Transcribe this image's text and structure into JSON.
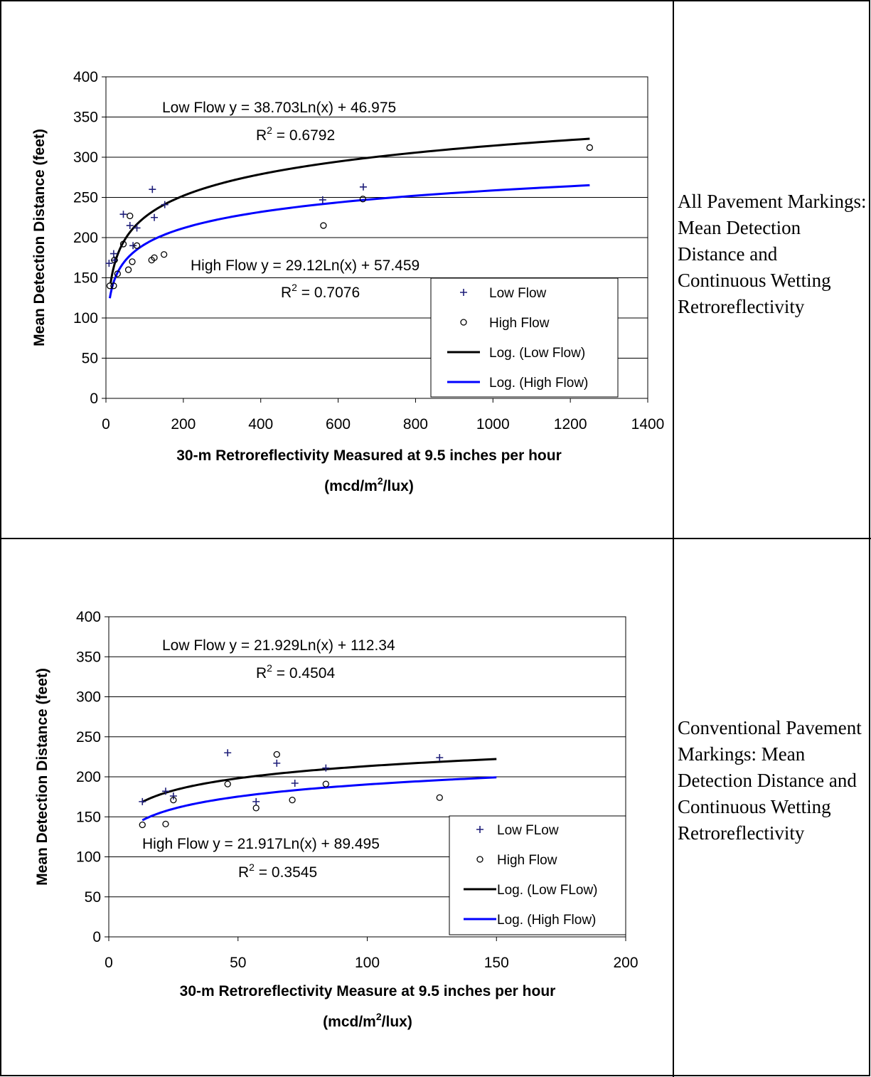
{
  "panels": [
    {
      "caption": "All Pavement Markings: Mean Detection Distance and Continuous Wetting Retroreflectivity",
      "chart_data": {
        "type": "scatter",
        "ylabel": "Mean Detection Distance (feet)",
        "xlabel_line1": "30-m Retroreflectivity Measured at 9.5 inches per hour",
        "xlabel_line2_pre": "(mcd/m",
        "xlabel_line2_sup": "2",
        "xlabel_line2_post": "/lux)",
        "xlim": [
          0,
          1400
        ],
        "ylim": [
          0,
          400
        ],
        "xticks": [
          0,
          200,
          400,
          600,
          800,
          1000,
          1200,
          1400
        ],
        "yticks": [
          0,
          50,
          100,
          150,
          200,
          250,
          300,
          350,
          400
        ],
        "grid": "horizontal",
        "legend_position": "bottom-right",
        "legend": [
          "Low Flow",
          "High Flow",
          "Log. (Low Flow)",
          "Log. (High Flow)"
        ],
        "series": [
          {
            "name": "Low Flow",
            "marker": "plus",
            "color": "#1f1f7a",
            "points": [
              [
                8,
                168
              ],
              [
                20,
                180
              ],
              [
                22,
                172
              ],
              [
                45,
                229
              ],
              [
                62,
                215
              ],
              [
                70,
                190
              ],
              [
                80,
                212
              ],
              [
                120,
                260
              ],
              [
                125,
                225
              ],
              [
                152,
                241
              ],
              [
                560,
                247
              ],
              [
                665,
                263
              ]
            ]
          },
          {
            "name": "High Flow",
            "marker": "circle",
            "color": "#000000",
            "points": [
              [
                10,
                140
              ],
              [
                20,
                140
              ],
              [
                22,
                172
              ],
              [
                30,
                155
              ],
              [
                45,
                192
              ],
              [
                58,
                160
              ],
              [
                62,
                227
              ],
              [
                68,
                170
              ],
              [
                80,
                190
              ],
              [
                118,
                172
              ],
              [
                125,
                175
              ],
              [
                150,
                179
              ],
              [
                562,
                215
              ],
              [
                664,
                248
              ],
              [
                1250,
                312
              ]
            ]
          }
        ],
        "trendlines": [
          {
            "name": "Log. (Low Flow)",
            "a": 38.703,
            "b": 46.975,
            "xmin": 12,
            "xmax": 1250,
            "color": "#000000"
          },
          {
            "name": "Log. (High Flow)",
            "a": 29.12,
            "b": 57.459,
            "xmin": 10,
            "xmax": 1250,
            "color": "#0000ff"
          }
        ],
        "annotations": [
          {
            "eq": "Low Flow  y = 38.703Ln(x) + 46.975",
            "r2_pre": "R",
            "r2_sup": "2",
            "r2_post": " = 0.6792"
          },
          {
            "eq": "High Flow  y = 29.12Ln(x) + 57.459",
            "r2_pre": "R",
            "r2_sup": "2",
            "r2_post": " = 0.7076"
          }
        ]
      }
    },
    {
      "caption": "Conventional Pavement Markings: Mean Detection Distance and Continuous Wetting Retroreflectivity",
      "chart_data": {
        "type": "scatter",
        "ylabel": "Mean Detection Distance (feet)",
        "xlabel_line1": "30-m Retroreflectivity Measure at 9.5 inches per hour",
        "xlabel_line2_pre": "(mcd/m",
        "xlabel_line2_sup": "2",
        "xlabel_line2_post": "/lux)",
        "xlim": [
          0,
          200
        ],
        "ylim": [
          0,
          400
        ],
        "xticks": [
          0,
          50,
          100,
          150,
          200
        ],
        "yticks": [
          0,
          50,
          100,
          150,
          200,
          250,
          300,
          350,
          400
        ],
        "grid": "horizontal",
        "legend_position": "bottom-right",
        "legend": [
          "Low FLow",
          "High Flow",
          "Log. (Low FLow)",
          "Log. (High Flow)"
        ],
        "series": [
          {
            "name": "Low FLow",
            "marker": "plus",
            "color": "#1f1f7a",
            "points": [
              [
                13,
                169
              ],
              [
                22,
                182
              ],
              [
                25,
                176
              ],
              [
                46,
                230
              ],
              [
                57,
                169
              ],
              [
                65,
                217
              ],
              [
                72,
                192
              ],
              [
                84,
                211
              ],
              [
                128,
                224
              ]
            ]
          },
          {
            "name": "High Flow",
            "marker": "circle",
            "color": "#000000",
            "points": [
              [
                13,
                140
              ],
              [
                22,
                141
              ],
              [
                25,
                171
              ],
              [
                46,
                191
              ],
              [
                57,
                161
              ],
              [
                65,
                228
              ],
              [
                71,
                171
              ],
              [
                84,
                191
              ],
              [
                128,
                174
              ]
            ]
          }
        ],
        "trendlines": [
          {
            "name": "Log. (Low FLow)",
            "a": 21.929,
            "b": 112.34,
            "xmin": 13,
            "xmax": 150,
            "color": "#000000"
          },
          {
            "name": "Log. (High Flow)",
            "a": 21.917,
            "b": 89.495,
            "xmin": 13,
            "xmax": 150,
            "color": "#0000ff"
          }
        ],
        "annotations": [
          {
            "eq": "Low Flow  y = 21.929Ln(x) + 112.34",
            "r2_pre": "R",
            "r2_sup": "2",
            "r2_post": " = 0.4504"
          },
          {
            "eq": "High Flow  y = 21.917Ln(x) + 89.495",
            "r2_pre": "R",
            "r2_sup": "2",
            "r2_post": " = 0.3545"
          }
        ]
      }
    }
  ]
}
